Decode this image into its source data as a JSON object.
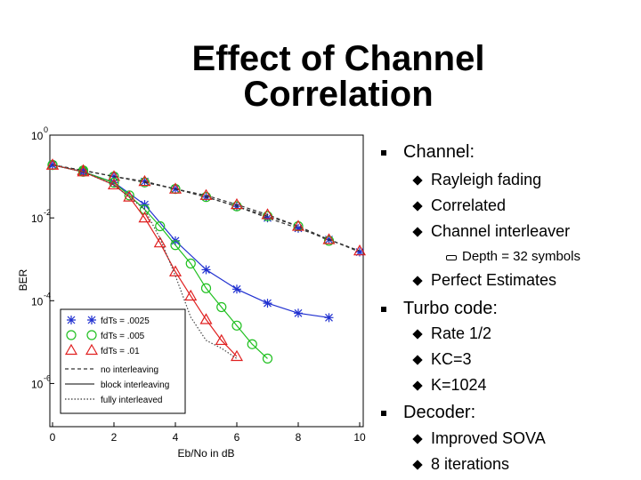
{
  "title": "Effect of Channel Correlation",
  "chart_data": {
    "type": "line",
    "y_scale": "log",
    "grid": false,
    "x_label": "Eb/No in dB",
    "y_label": "BER",
    "xlim": [
      0,
      10
    ],
    "xticks": [
      0,
      2,
      4,
      6,
      8,
      10
    ],
    "ylim": [
      1e-07,
      1
    ],
    "yticks": [
      {
        "value": 1,
        "label": "10",
        "exponent": "0"
      },
      {
        "value": 0.01,
        "label": "10",
        "exponent": "-2"
      },
      {
        "value": 0.0001,
        "label": "10",
        "exponent": "-4"
      },
      {
        "value": 1e-06,
        "label": "10",
        "exponent": "-6"
      }
    ],
    "legend_position": "lower left",
    "legend": [
      {
        "label": "fdTs = .0025",
        "marker": "star",
        "color": "#2030d0"
      },
      {
        "label": "fdTs = .005",
        "marker": "circle",
        "color": "#20c020"
      },
      {
        "label": "fdTs = .01",
        "marker": "triangle",
        "color": "#e02020"
      },
      {
        "label": "no interleaving",
        "dash": "dashed"
      },
      {
        "label": "block interleaving",
        "dash": "solid"
      },
      {
        "label": "fully interleaved",
        "dash": "dotted"
      }
    ],
    "series": [
      {
        "marker": "star",
        "color": "#2030d0",
        "line_color": "#333333",
        "dash": "dashed",
        "x": [
          0,
          1,
          2,
          3,
          4,
          5,
          6,
          7,
          8,
          9,
          10
        ],
        "values": [
          0.19,
          0.14,
          0.1,
          0.076,
          0.05,
          0.032,
          0.019,
          0.01,
          0.0056,
          0.003,
          0.0015
        ]
      },
      {
        "marker": "circle",
        "color": "#20c020",
        "line_color": "#333333",
        "dash": "dashed",
        "x": [
          0,
          1,
          2,
          3,
          4,
          5,
          6,
          7,
          8,
          9
        ],
        "values": [
          0.19,
          0.14,
          0.1,
          0.072,
          0.05,
          0.032,
          0.019,
          0.011,
          0.0063,
          0.0028
        ]
      },
      {
        "marker": "triangle",
        "color": "#e02020",
        "line_color": "#333333",
        "dash": "dashed",
        "x": [
          0,
          1,
          2,
          3,
          4,
          5,
          6,
          7,
          8,
          9,
          10
        ],
        "values": [
          0.19,
          0.14,
          0.1,
          0.076,
          0.05,
          0.035,
          0.021,
          0.012,
          0.0063,
          0.003,
          0.0016
        ]
      },
      {
        "marker": "star",
        "color": "#2030d0",
        "line_color": "#2030d0",
        "dash": "solid",
        "x": [
          0,
          1,
          2,
          3,
          4,
          5,
          6,
          7,
          8,
          9
        ],
        "values": [
          0.19,
          0.13,
          0.072,
          0.021,
          0.0028,
          0.00056,
          0.00019,
          8.7e-05,
          5e-05,
          3.9e-05
        ]
      },
      {
        "marker": "circle",
        "color": "#20c020",
        "line_color": "#20c020",
        "dash": "solid",
        "x": [
          0,
          1,
          2,
          2.5,
          3,
          3.5,
          4,
          4.5,
          5,
          5.5,
          6,
          6.5,
          7
        ],
        "values": [
          0.19,
          0.13,
          0.071,
          0.035,
          0.016,
          0.0063,
          0.0022,
          0.00079,
          0.0002,
          7e-05,
          2.5e-05,
          8.9e-06,
          4e-06
        ]
      },
      {
        "marker": "triangle",
        "color": "#e02020",
        "line_color": "#e02020",
        "dash": "solid",
        "x": [
          0,
          1,
          2,
          2.5,
          3,
          3.5,
          4,
          4.5,
          5,
          5.5,
          6
        ],
        "values": [
          0.19,
          0.13,
          0.063,
          0.032,
          0.01,
          0.0025,
          0.0005,
          0.00013,
          3.5e-05,
          1.1e-05,
          4.5e-06
        ]
      },
      {
        "marker": "none",
        "color": "#444444",
        "line_color": "#444444",
        "dash": "dotted",
        "x": [
          0,
          1,
          2,
          3,
          3.5,
          4,
          4.5,
          5,
          5.5,
          6
        ],
        "values": [
          0.19,
          0.13,
          0.063,
          0.016,
          0.0032,
          0.0004,
          4e-05,
          1.1e-05,
          7.1e-06,
          4e-06
        ]
      }
    ]
  },
  "bullets": [
    {
      "text": "Channel:",
      "items": [
        {
          "text": "Rayleigh fading"
        },
        {
          "text": "Correlated"
        },
        {
          "text": "Channel interleaver",
          "items": [
            {
              "text": "Depth = 32 symbols"
            }
          ]
        },
        {
          "text": "Perfect Estimates"
        }
      ]
    },
    {
      "text": "Turbo code:",
      "items": [
        {
          "text": "Rate 1/2"
        },
        {
          "text": "KC=3"
        },
        {
          "text": "K=1024"
        }
      ]
    },
    {
      "text": "Decoder:",
      "items": [
        {
          "text": "Improved SOVA"
        },
        {
          "text": "8 iterations"
        }
      ]
    }
  ]
}
